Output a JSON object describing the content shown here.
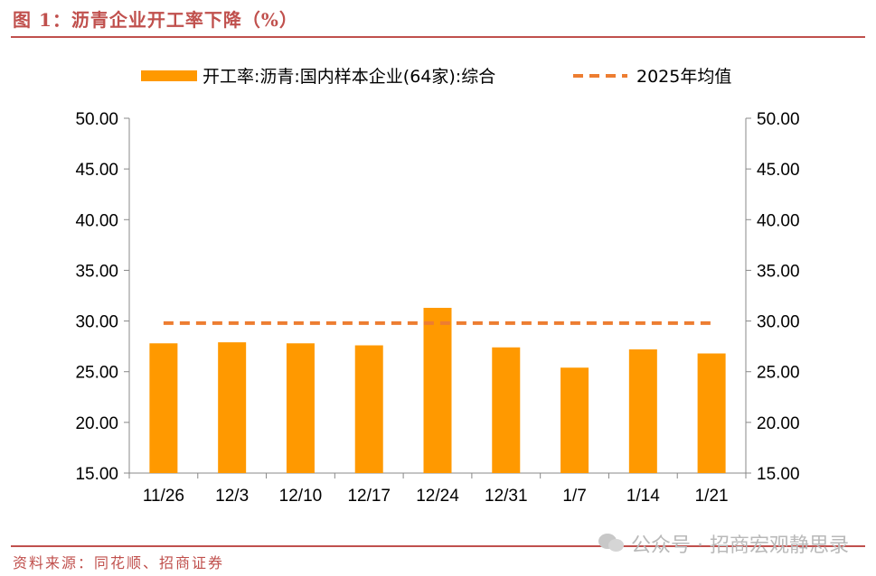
{
  "header": {
    "title": "图 1：沥青企业开工率下降（%）"
  },
  "footer": {
    "source": "资料来源：同花顺、招商证券",
    "watermark": "公众号 · 招商宏观静思录"
  },
  "chart_data": {
    "type": "bar",
    "categories": [
      "11/26",
      "12/3",
      "12/10",
      "12/17",
      "12/24",
      "12/31",
      "1/7",
      "1/14",
      "1/21"
    ],
    "series": [
      {
        "name": "开工率:沥青:国内样本企业(64家):综合",
        "type": "bar",
        "color": "#ff9900",
        "values": [
          27.8,
          27.9,
          27.8,
          27.6,
          31.3,
          27.4,
          25.4,
          27.2,
          26.8
        ]
      },
      {
        "name": "2025年均值",
        "type": "line",
        "style": "dashed",
        "color": "#ed7d31",
        "values": [
          29.8,
          29.8,
          29.8,
          29.8,
          29.8,
          29.8,
          29.8,
          29.8,
          29.8
        ]
      }
    ],
    "ylim": [
      15,
      50
    ],
    "yticks": [
      "15.00",
      "20.00",
      "25.00",
      "30.00",
      "35.00",
      "40.00",
      "45.00",
      "50.00"
    ],
    "secondary_yticks": [
      "15.00",
      "20.00",
      "25.00",
      "30.00",
      "35.00",
      "40.00",
      "45.00",
      "50.00"
    ],
    "legend_position": "top",
    "grid": false
  }
}
